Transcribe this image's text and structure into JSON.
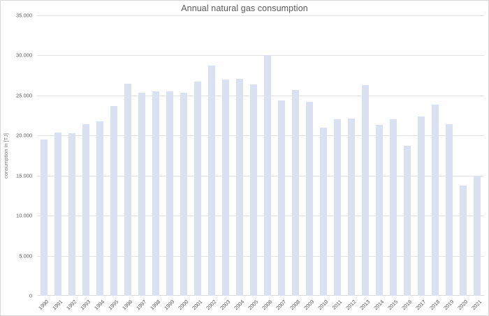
{
  "chart_data": {
    "type": "bar",
    "title": "Annual natural gas consumption",
    "xlabel": "",
    "ylabel": "consumption in [TJ]",
    "categories": [
      "1990",
      "1991",
      "1992",
      "1993",
      "1994",
      "1995",
      "1996",
      "1997",
      "1998",
      "1999",
      "2000",
      "2001",
      "2002",
      "2003",
      "2004",
      "2005",
      "2006",
      "2007",
      "2008",
      "2009",
      "2010",
      "2011",
      "2012",
      "2013",
      "2014",
      "2015",
      "2016",
      "2017",
      "2018",
      "2019",
      "2020",
      "2021"
    ],
    "values": [
      19500,
      20400,
      20250,
      21400,
      21800,
      23700,
      26500,
      25300,
      25550,
      25500,
      25300,
      26700,
      28700,
      27000,
      27100,
      26400,
      30000,
      24400,
      25650,
      24200,
      21000,
      22000,
      22100,
      26300,
      21350,
      22000,
      18750,
      22400,
      23900,
      21400,
      13800,
      15000
    ],
    "ylim": [
      0,
      35000
    ],
    "ytick_values": [
      0,
      5000,
      10000,
      15000,
      20000,
      25000,
      30000,
      35000
    ],
    "ytick_labels": [
      "0",
      "5.000",
      "10.000",
      "15.000",
      "20.000",
      "25.000",
      "30.000",
      "35.000"
    ],
    "grid": true,
    "legend": "none",
    "colors": {
      "bar_fill": "#d9e1f2",
      "gridline": "#e2e2e2",
      "axis_line": "#d9d9d9",
      "text": "#595959",
      "frame_border": "#d7d7d7"
    }
  }
}
